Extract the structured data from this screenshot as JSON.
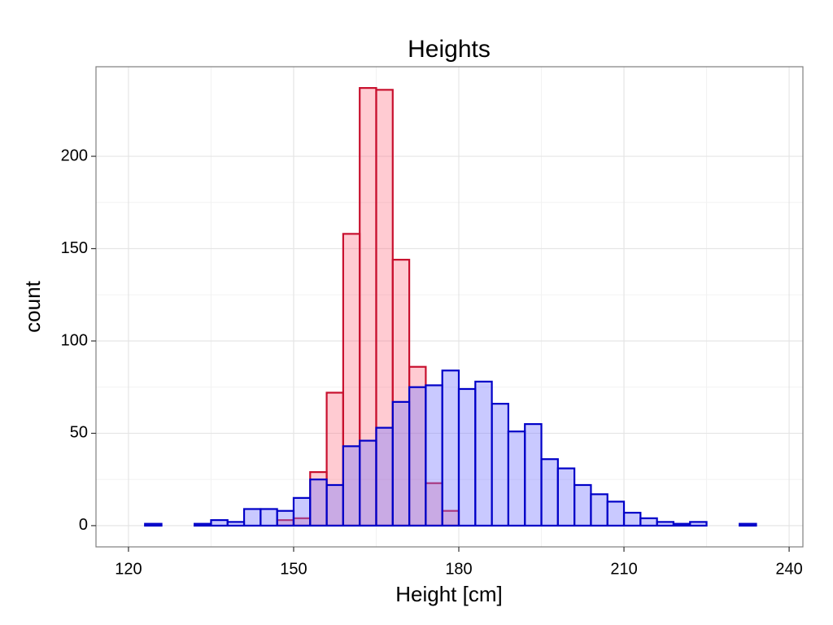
{
  "chart_data": {
    "type": "histogram",
    "title": "Heights",
    "x_label": "Height [cm]",
    "y_label": "count",
    "bins": [
      120,
      123,
      126,
      129,
      132,
      135,
      138,
      141,
      144,
      147,
      150,
      153,
      156,
      159,
      162,
      165,
      168,
      171,
      174,
      177,
      180,
      183,
      186,
      189,
      192,
      195,
      198,
      201,
      204,
      207,
      210,
      213,
      216,
      219,
      222,
      225,
      228,
      231,
      234,
      237
    ],
    "series": [
      {
        "color": "#c8102e",
        "fill": "rgba(255,105,125,0.35)",
        "values": [
          0,
          0,
          0,
          0,
          0,
          0,
          0,
          0,
          0,
          3,
          4,
          29,
          72,
          158,
          237,
          236,
          144,
          86,
          23,
          8,
          0,
          0,
          0,
          0,
          0,
          0,
          0,
          0,
          0,
          0,
          0,
          0,
          0,
          0,
          0,
          0,
          0,
          0,
          0
        ]
      },
      {
        "color": "#0000c8",
        "fill": "rgba(120,120,255,0.4)",
        "values": [
          0,
          1,
          0,
          0,
          1,
          3,
          2,
          9,
          9,
          8,
          15,
          25,
          22,
          43,
          46,
          53,
          67,
          75,
          76,
          84,
          74,
          78,
          66,
          51,
          55,
          36,
          31,
          22,
          17,
          13,
          7,
          4,
          2,
          1,
          2,
          0,
          0,
          1,
          0
        ]
      }
    ],
    "xlim": [
      114.1,
      242.5
    ],
    "xticks": [
      120,
      150,
      180,
      210,
      240
    ],
    "ylim": [
      -11.5,
      248.5
    ],
    "yticks": [
      0,
      50,
      100,
      150,
      200
    ],
    "grid": true
  }
}
